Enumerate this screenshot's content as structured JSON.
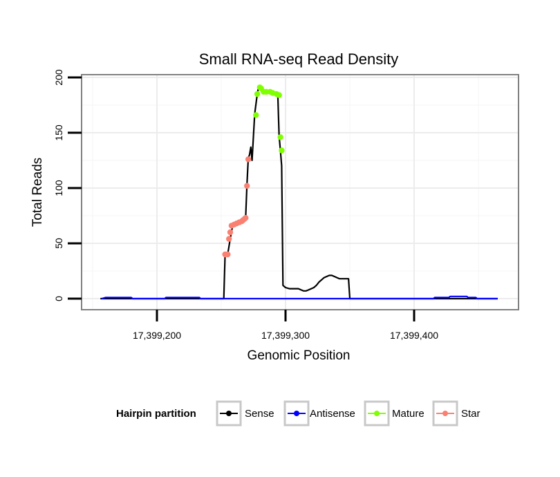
{
  "chart_data": {
    "type": "line",
    "title": "Small RNA-seq Read Density",
    "xlabel": "Genomic Position",
    "ylabel": "Total Reads",
    "xlim": [
      17399150,
      17399490
    ],
    "ylim": [
      -10,
      210
    ],
    "x_ticks": [
      17399200,
      17399300,
      17399400
    ],
    "x_tick_labels": [
      "17,399,200",
      "17,399,300",
      "17,399,400"
    ],
    "y_ticks": [
      0,
      50,
      100,
      150,
      200
    ],
    "y_tick_labels": [
      "0",
      "50",
      "100",
      "150",
      "200"
    ],
    "grid": true,
    "legend": {
      "position": "bottom",
      "title": "Hairpin partition",
      "entries": [
        {
          "label": "Sense",
          "color": "#000000"
        },
        {
          "label": "Antisense",
          "color": "#0000ff"
        },
        {
          "label": "Mature",
          "color": "#7fff00"
        },
        {
          "label": "Star",
          "color": "#fa8072"
        }
      ]
    },
    "series": [
      {
        "name": "Sense",
        "color": "#000000",
        "x": [
          17399156,
          17399252,
          17399253,
          17399255,
          17399257,
          17399258,
          17399259,
          17399260,
          17399262,
          17399264,
          17399266,
          17399268,
          17399269,
          17399270,
          17399271,
          17399272,
          17399273,
          17399274,
          17399276,
          17399278,
          17399279,
          17399281,
          17399283,
          17399285,
          17399287,
          17399289,
          17399291,
          17399294,
          17399295,
          17399296,
          17399297,
          17399298,
          17399300,
          17399303,
          17399310,
          17399312,
          17399314,
          17399316,
          17399318,
          17399320,
          17399322,
          17399324,
          17399326,
          17399328,
          17399330,
          17399332,
          17399334,
          17399336,
          17399338,
          17399340,
          17399342,
          17399344,
          17399346,
          17399348,
          17399349,
          17399350,
          17399465
        ],
        "y": [
          0,
          0,
          40,
          40,
          54,
          61,
          66,
          67,
          68,
          69,
          70,
          72,
          73,
          103,
          127,
          130,
          137,
          125,
          167,
          185,
          191,
          188,
          188,
          188,
          188,
          187,
          186,
          185,
          147,
          134,
          120,
          12,
          10,
          9,
          9,
          8,
          7,
          7,
          8,
          9,
          10,
          12,
          15,
          17,
          19,
          20,
          21,
          21,
          20,
          19,
          18,
          18,
          18,
          18,
          18,
          0,
          0
        ]
      },
      {
        "name": "Antisense",
        "color": "#0000ff",
        "x": [
          17399157,
          17399160,
          17399180,
          17399181,
          17399206,
          17399207,
          17399233,
          17399234,
          17399415,
          17399416,
          17399427,
          17399428,
          17399441,
          17399442,
          17399448,
          17399449,
          17399465
        ],
        "y": [
          0,
          1,
          1,
          0,
          0,
          1,
          1,
          0,
          0,
          1,
          1,
          2,
          2,
          1,
          1,
          0,
          0
        ]
      },
      {
        "name": "Mature",
        "color": "#7fff00",
        "points_x": [
          17399277,
          17399278,
          17399280,
          17399281,
          17399283,
          17399285,
          17399288,
          17399290,
          17399293,
          17399295,
          17399296,
          17399297
        ],
        "points_y": [
          166,
          185,
          191,
          190,
          187,
          187,
          187,
          186,
          185,
          184,
          146,
          134
        ]
      },
      {
        "name": "Star",
        "color": "#fa8072",
        "points_x": [
          17399253,
          17399255,
          17399256,
          17399257,
          17399258,
          17399260,
          17399262,
          17399264,
          17399266,
          17399267,
          17399268,
          17399269,
          17399270,
          17399271
        ],
        "points_y": [
          40,
          40,
          54,
          60,
          66,
          67,
          68,
          69,
          70,
          71,
          72,
          73,
          102,
          126
        ]
      }
    ]
  }
}
